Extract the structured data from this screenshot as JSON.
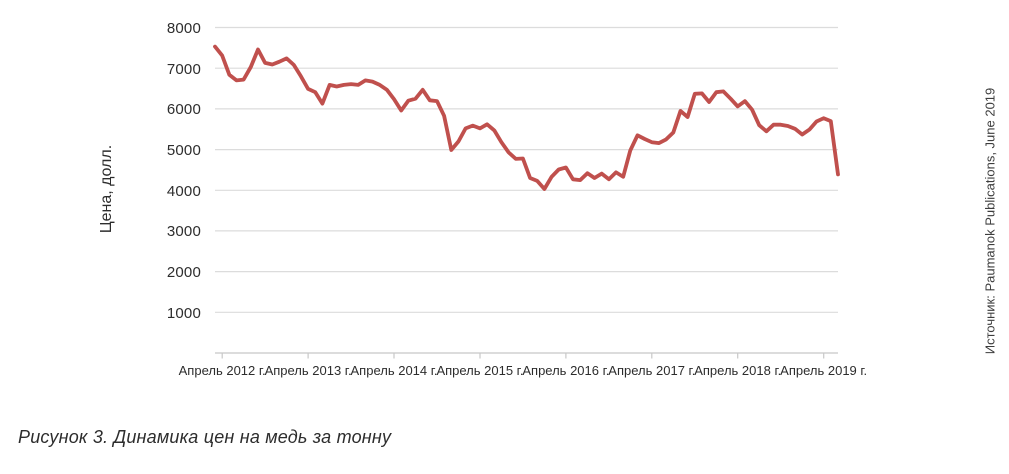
{
  "figure": {
    "caption": "Рисунок 3. Динамика цен на медь за тонну",
    "source": "Источник: Paumanok Publications, June 2019"
  },
  "chart_data": {
    "type": "line",
    "title": "",
    "xlabel": "",
    "ylabel": "Цена, долл.",
    "ylim": [
      0,
      8000
    ],
    "grid": "horizontal",
    "legend": "none",
    "line_color": "#c0504d",
    "gridline_color": "#dcdcdc",
    "axis_color": "#c8c8c8",
    "text_color": "#2d2d2d",
    "y_ticks": [
      8000,
      7000,
      6000,
      5000,
      4000,
      3000,
      2000,
      1000
    ],
    "x_tick_labels": [
      "Апрель 2012 г.",
      "Апрель 2013 г.",
      "Апрель 2014 г.",
      "Апрель 2015 г.",
      "Апрель 2016 г.",
      "Апрель 2017 г.",
      "Апрель 2018 г.",
      "Апрель 2019 г."
    ],
    "x_tick_month": "-04",
    "series": [
      {
        "name": "Цена, долл.",
        "months": [
          "2012-03",
          "2012-04",
          "2012-05",
          "2012-06",
          "2012-07",
          "2012-08",
          "2012-09",
          "2012-10",
          "2012-11",
          "2012-12",
          "2013-01",
          "2013-02",
          "2013-03",
          "2013-04",
          "2013-05",
          "2013-06",
          "2013-07",
          "2013-08",
          "2013-09",
          "2013-10",
          "2013-11",
          "2013-12",
          "2014-01",
          "2014-02",
          "2014-03",
          "2014-04",
          "2014-05",
          "2014-06",
          "2014-07",
          "2014-08",
          "2014-09",
          "2014-10",
          "2014-11",
          "2014-12",
          "2015-01",
          "2015-02",
          "2015-03",
          "2015-04",
          "2015-05",
          "2015-06",
          "2015-07",
          "2015-08",
          "2015-09",
          "2015-10",
          "2015-11",
          "2015-12",
          "2016-01",
          "2016-02",
          "2016-03",
          "2016-04",
          "2016-05",
          "2016-06",
          "2016-07",
          "2016-08",
          "2016-09",
          "2016-10",
          "2016-11",
          "2016-12",
          "2017-01",
          "2017-02",
          "2017-03",
          "2017-04",
          "2017-05",
          "2017-06",
          "2017-07",
          "2017-08",
          "2017-09",
          "2017-10",
          "2017-11",
          "2017-12",
          "2018-01",
          "2018-02",
          "2018-03",
          "2018-04",
          "2018-05",
          "2018-06",
          "2018-07",
          "2018-08",
          "2018-09",
          "2018-10",
          "2018-11",
          "2018-12",
          "2019-01",
          "2019-02",
          "2019-03",
          "2019-04",
          "2019-05",
          "2019-06"
        ],
        "values": [
          7530,
          7310,
          6840,
          6700,
          6720,
          7030,
          7460,
          7130,
          7090,
          7160,
          7240,
          7080,
          6800,
          6490,
          6410,
          6130,
          6590,
          6550,
          6590,
          6610,
          6590,
          6700,
          6670,
          6590,
          6470,
          6240,
          5960,
          6200,
          6250,
          6470,
          6210,
          6190,
          5830,
          4990,
          5200,
          5520,
          5590,
          5520,
          5620,
          5470,
          5180,
          4930,
          4770,
          4780,
          4300,
          4230,
          4030,
          4330,
          4510,
          4560,
          4270,
          4250,
          4420,
          4300,
          4410,
          4270,
          4440,
          4330,
          4980,
          5350,
          5260,
          5180,
          5160,
          5250,
          5420,
          5950,
          5800,
          6370,
          6380,
          6170,
          6410,
          6430,
          6250,
          6060,
          6190,
          5980,
          5600,
          5450,
          5610,
          5610,
          5580,
          5510,
          5370,
          5490,
          5690,
          5770,
          5700,
          4390
        ]
      }
    ]
  }
}
